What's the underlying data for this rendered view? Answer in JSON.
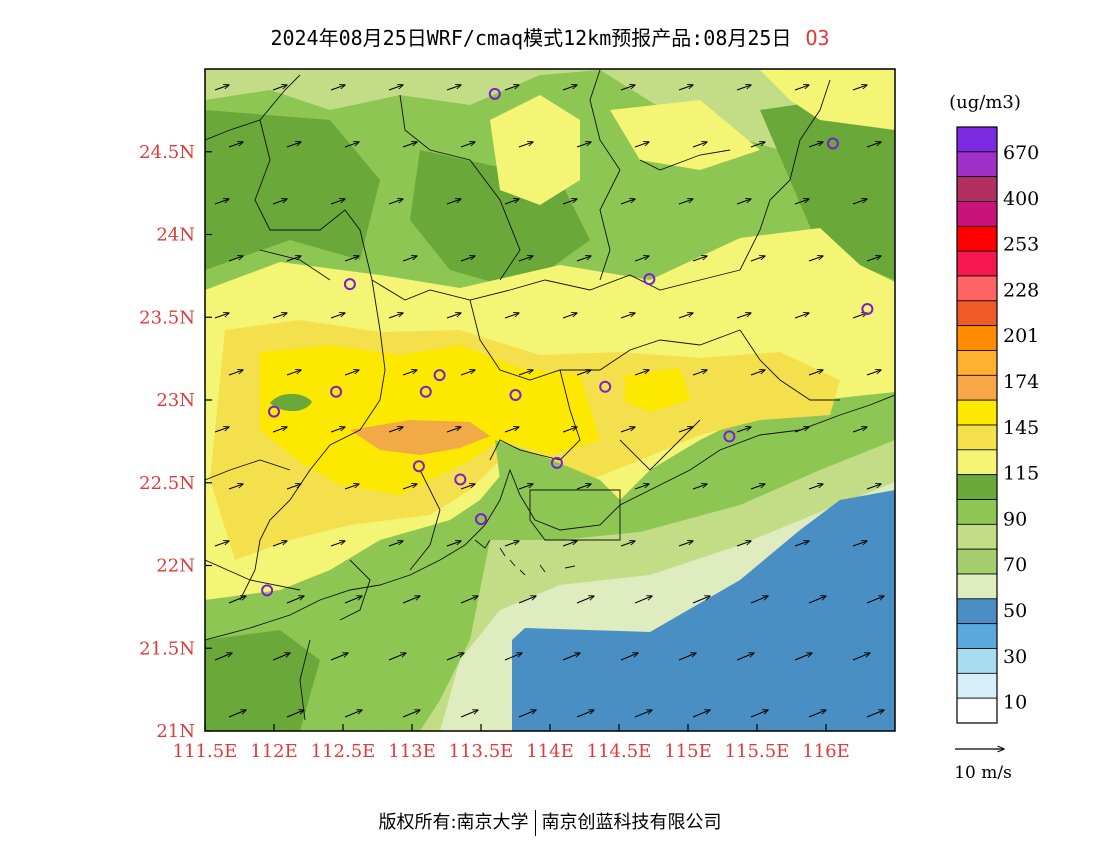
{
  "title": {
    "main": "2024年08月25日WRF/cmaq模式12km预报产品:08月25日",
    "species": "O3"
  },
  "map": {
    "lon_range": [
      111.5,
      116.5
    ],
    "lat_range": [
      21,
      25
    ],
    "lon_ticks": [
      "111.5E",
      "112E",
      "112.5E",
      "113E",
      "113.5E",
      "114E",
      "114.5E",
      "115E",
      "115.5E",
      "116E"
    ],
    "lat_ticks": [
      "21N",
      "21.5N",
      "22N",
      "22.5N",
      "23N",
      "23.5N",
      "24N",
      "24.5N"
    ],
    "colors": {
      "ocean": "#4a8fc4",
      "lvl50": "#dfecc0",
      "lvl70": "#c3dd87",
      "lvl90": "#8dc653",
      "lvl100": "#6aa83a",
      "lvl115": "#f4f574",
      "lvl145": "#f4e04d",
      "lvl174": "#fde800",
      "lvl201": "#f2aa46"
    },
    "monitor_stations": [
      {
        "lon": 113.6,
        "lat": 24.85
      },
      {
        "lon": 116.05,
        "lat": 24.55
      },
      {
        "lon": 112.55,
        "lat": 23.7
      },
      {
        "lon": 114.72,
        "lat": 23.73
      },
      {
        "lon": 116.3,
        "lat": 23.55
      },
      {
        "lon": 113.1,
        "lat": 23.05
      },
      {
        "lon": 113.2,
        "lat": 23.15
      },
      {
        "lon": 113.75,
        "lat": 23.03
      },
      {
        "lon": 114.4,
        "lat": 23.08
      },
      {
        "lon": 112.45,
        "lat": 23.05
      },
      {
        "lon": 112.0,
        "lat": 22.93
      },
      {
        "lon": 115.3,
        "lat": 22.78
      },
      {
        "lon": 113.05,
        "lat": 22.6
      },
      {
        "lon": 113.35,
        "lat": 22.52
      },
      {
        "lon": 114.05,
        "lat": 22.62
      },
      {
        "lon": 113.5,
        "lat": 22.28
      },
      {
        "lon": 111.95,
        "lat": 21.85
      }
    ]
  },
  "legend": {
    "unit": "(ug/m3)",
    "levels": [
      "670",
      "400",
      "253",
      "228",
      "201",
      "174",
      "145",
      "115",
      "90",
      "70",
      "50",
      "30",
      "10"
    ],
    "colors": [
      "#7c2ae0",
      "#a030c8",
      "#b23060",
      "#c81478",
      "#ff0000",
      "#f5174f",
      "#ff6464",
      "#f05a28",
      "#ff8c00",
      "#ffb02e",
      "#f7a64a",
      "#fde800",
      "#f4e04d",
      "#f4f574",
      "#6aa83a",
      "#8dc653",
      "#c3dd87",
      "#a6cd6e",
      "#dfecc0",
      "#4a8fc4",
      "#5aa8dc",
      "#a6dcf0",
      "#d6eef8",
      "#ffffff"
    ],
    "wind_ref": "10 m/s"
  },
  "footer": {
    "copyright": "版权所有:南京大学",
    "company": "南京创蓝科技有限公司"
  }
}
